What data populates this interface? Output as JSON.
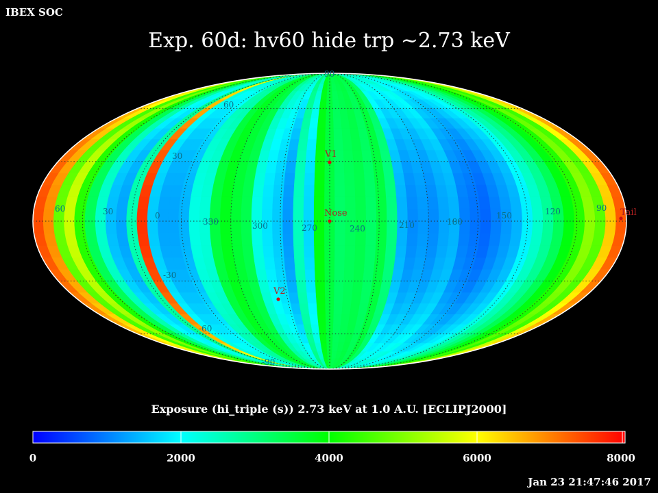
{
  "header": {
    "org": "IBEX SOC",
    "title": "Exp.   60d: hv60 hide trp ~2.73 keV",
    "timestamp": "Jan 23 21:47:46 2017"
  },
  "colorbar": {
    "title": "Exposure (hi_triple (s))  2.73 keV at 1.0 A.U. [ECLIPJ2000]",
    "ticks": [
      "0",
      "2000",
      "4000",
      "6000",
      "8000"
    ],
    "range": [
      0,
      8000
    ],
    "stops": [
      "#0000ff",
      "#00ffff",
      "#00ff00",
      "#ffff00",
      "#ff0000"
    ]
  },
  "chart_data": {
    "type": "heatmap",
    "projection": "mollweide",
    "frame": "ECLIPJ2000",
    "value_range": [
      0,
      8000
    ],
    "units": "s",
    "center_longitude": 90,
    "longitude_bin_deg": 6,
    "latitude_bin_deg": 6,
    "colors": [
      "#0000ff",
      "#00ffff",
      "#00ff00",
      "#ffff00",
      "#ff0000"
    ],
    "lon_values_at_equator": [
      [
        60,
        7400
      ],
      [
        54,
        6900
      ],
      [
        48,
        4800
      ],
      [
        42,
        5600
      ],
      [
        36,
        4300
      ],
      [
        30,
        3300
      ],
      [
        24,
        2400
      ],
      [
        18,
        1500
      ],
      [
        12,
        1300
      ],
      [
        6,
        2600
      ],
      [
        0,
        7600
      ],
      [
        354,
        1600
      ],
      [
        348,
        1300
      ],
      [
        342,
        1300
      ],
      [
        336,
        1400
      ],
      [
        330,
        2200
      ],
      [
        324,
        2300
      ],
      [
        318,
        3500
      ],
      [
        312,
        3800
      ],
      [
        306,
        3600
      ],
      [
        300,
        3400
      ],
      [
        294,
        2200
      ],
      [
        288,
        1800
      ],
      [
        282,
        1600
      ],
      [
        276,
        1200
      ],
      [
        270,
        2500
      ],
      [
        264,
        1700
      ],
      [
        258,
        3900
      ],
      [
        252,
        3500
      ],
      [
        246,
        3200
      ],
      [
        240,
        3300
      ],
      [
        234,
        3400
      ],
      [
        228,
        3200
      ],
      [
        222,
        3500
      ],
      [
        216,
        3000
      ],
      [
        210,
        1400
      ],
      [
        204,
        1100
      ],
      [
        198,
        1200
      ],
      [
        192,
        1100
      ],
      [
        186,
        1300
      ],
      [
        180,
        1400
      ],
      [
        174,
        1000
      ],
      [
        168,
        900
      ],
      [
        162,
        800
      ],
      [
        156,
        1000
      ],
      [
        150,
        1200
      ],
      [
        144,
        1400
      ],
      [
        138,
        1900
      ],
      [
        132,
        2400
      ],
      [
        126,
        2800
      ],
      [
        120,
        3300
      ],
      [
        114,
        3900
      ],
      [
        108,
        4300
      ],
      [
        102,
        5100
      ],
      [
        96,
        4700
      ],
      [
        90,
        6400
      ],
      [
        84,
        7300
      ]
    ],
    "graticule": {
      "longitude_labels": [
        "60",
        "30",
        "0",
        "330",
        "300",
        "270",
        "240",
        "210",
        "180",
        "150",
        "120",
        "90"
      ],
      "latitude_labels": [
        "90",
        "60",
        "30",
        "-30",
        "-60",
        "-90"
      ]
    },
    "markers": [
      {
        "label": "V1",
        "lon": 255,
        "lat": 34
      },
      {
        "label": "Nose",
        "lon": 255,
        "lat": 5
      },
      {
        "label": "V2",
        "lon": 289,
        "lat": -32
      },
      {
        "label": "Tail",
        "lon": 75,
        "lat": -5
      }
    ]
  }
}
